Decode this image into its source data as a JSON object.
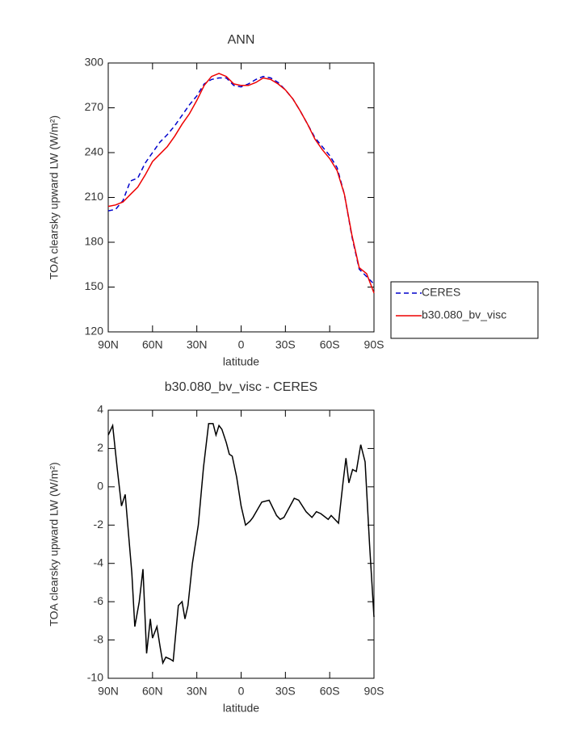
{
  "chart_data": [
    {
      "type": "line",
      "title": "ANN",
      "xlabel": "latitude",
      "ylabel": "TOA clearsky upward LW (W/m²)",
      "x": [
        90,
        85,
        80,
        75,
        70,
        65,
        60,
        55,
        50,
        45,
        40,
        35,
        30,
        25,
        20,
        15,
        10,
        5,
        0,
        -5,
        -10,
        -15,
        -20,
        -25,
        -30,
        -35,
        -40,
        -45,
        -50,
        -55,
        -60,
        -65,
        -70,
        -75,
        -80,
        -85,
        -90
      ],
      "series": [
        {
          "name": "CERES",
          "color": "#0000cc",
          "line_style": "dashed",
          "values": [
            201,
            202,
            208,
            221,
            223,
            233,
            240,
            247,
            252,
            258,
            265,
            272,
            278,
            286,
            289,
            290,
            290,
            285,
            284,
            286,
            289,
            291,
            290,
            287,
            282,
            276,
            268,
            259,
            250,
            244,
            238,
            230,
            212,
            184,
            162,
            157,
            152
          ]
        },
        {
          "name": "b30.080_bv_visc",
          "color": "#ee0000",
          "line_style": "solid",
          "values": [
            204,
            205,
            207,
            212,
            217,
            225,
            234,
            239,
            244,
            251,
            259,
            266,
            275,
            285,
            291,
            293,
            291,
            286,
            285,
            285,
            287,
            290,
            289,
            286,
            282,
            276,
            268,
            259,
            249,
            242,
            236,
            228,
            212,
            185,
            163,
            159,
            146
          ]
        }
      ],
      "xlim": [
        90,
        -90
      ],
      "xticks": [
        {
          "value": 90,
          "label": "90N"
        },
        {
          "value": 60,
          "label": "60N"
        },
        {
          "value": 30,
          "label": "30N"
        },
        0,
        {
          "value": -30,
          "label": "30S"
        },
        {
          "value": -60,
          "label": "60S"
        },
        {
          "value": -90,
          "label": "90S"
        }
      ],
      "ylim": [
        120,
        300
      ],
      "yticks": [
        120,
        150,
        180,
        210,
        240,
        270,
        300
      ]
    },
    {
      "type": "line",
      "title": "b30.080_bv_visc - CERES",
      "xlabel": "latitude",
      "ylabel": "TOA clearsky upward LW (W/m²)",
      "x": [
        90,
        87,
        84,
        81,
        78.5,
        74,
        72,
        69,
        66.5,
        64,
        61.5,
        60,
        57,
        55,
        53,
        51,
        48,
        46,
        42.5,
        40,
        38,
        36,
        33,
        29,
        25.5,
        22,
        19,
        17,
        15,
        13,
        10,
        8,
        6,
        3,
        0,
        -3,
        -6,
        -8,
        -14,
        -19,
        -24,
        -26.5,
        -29,
        -36,
        -39,
        -44,
        -48,
        -51,
        -54,
        -59,
        -61,
        -66,
        -69,
        -71,
        -73,
        -75.5,
        -78,
        -81,
        -84,
        -87,
        -90
      ],
      "color": "#000000",
      "values": [
        2.7,
        3.2,
        1.0,
        -1.0,
        -0.4,
        -4.5,
        -7.3,
        -6.0,
        -4.3,
        -8.7,
        -6.9,
        -7.9,
        -7.3,
        -8.3,
        -9.2,
        -8.9,
        -9.0,
        -9.1,
        -6.2,
        -6.0,
        -6.9,
        -6.2,
        -4.0,
        -2.0,
        1.0,
        3.3,
        3.3,
        2.7,
        3.2,
        3.0,
        2.3,
        1.7,
        1.6,
        0.5,
        -1.0,
        -2.0,
        -1.8,
        -1.6,
        -0.8,
        -0.7,
        -1.5,
        -1.7,
        -1.6,
        -0.6,
        -0.7,
        -1.3,
        -1.6,
        -1.3,
        -1.4,
        -1.7,
        -1.5,
        -1.9,
        0.2,
        1.5,
        0.2,
        0.9,
        0.8,
        2.2,
        1.3,
        -3.0,
        -6.8
      ],
      "xlim": [
        90,
        -90
      ],
      "xticks": [
        {
          "value": 90,
          "label": "90N"
        },
        {
          "value": 60,
          "label": "60N"
        },
        {
          "value": 30,
          "label": "30N"
        },
        0,
        {
          "value": -30,
          "label": "30S"
        },
        {
          "value": -60,
          "label": "60S"
        },
        {
          "value": -90,
          "label": "90S"
        }
      ],
      "ylim": [
        -10,
        4
      ],
      "yticks": [
        -10,
        -8,
        -6,
        -4,
        -2,
        0,
        2,
        4
      ]
    }
  ]
}
